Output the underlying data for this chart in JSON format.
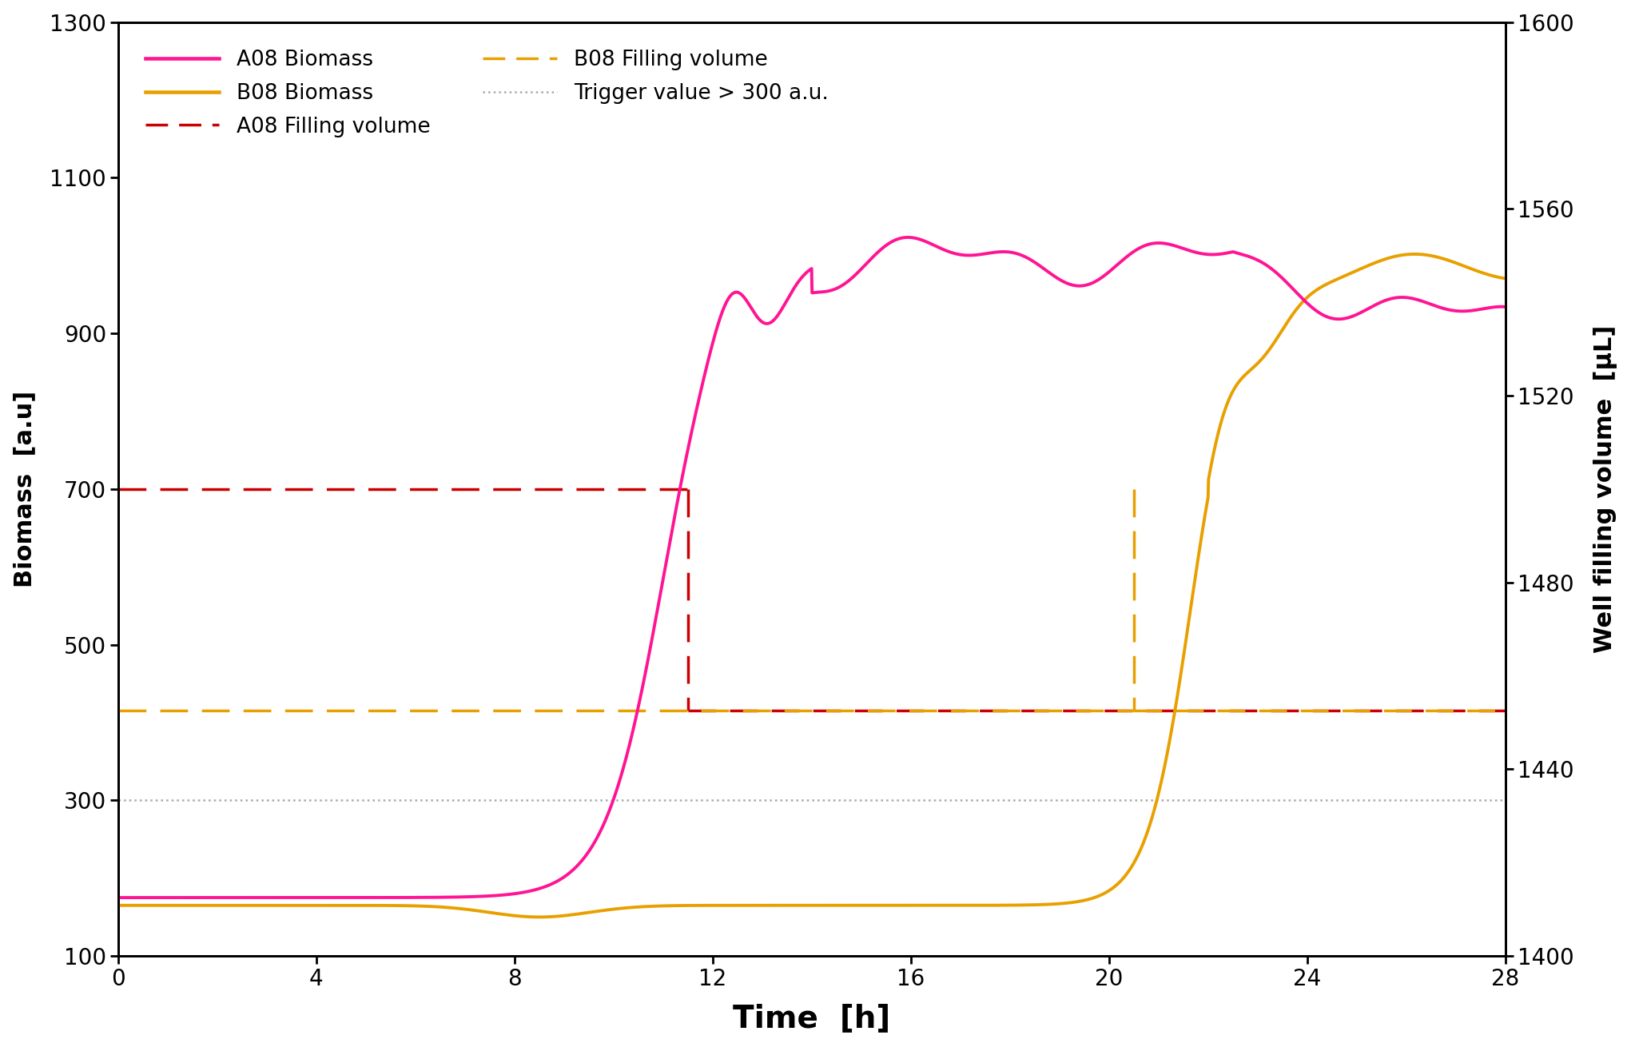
{
  "xlabel": "Time  [h]",
  "ylabel_left": "Biomass  [a.u]",
  "ylabel_right": "Well filling volume  [μL]",
  "xlim": [
    0,
    28
  ],
  "ylim_left": [
    100,
    1300
  ],
  "ylim_right": [
    1400,
    1600
  ],
  "yticks_left": [
    100,
    300,
    500,
    700,
    900,
    1100,
    1300
  ],
  "yticks_right": [
    1400,
    1440,
    1480,
    1520,
    1560,
    1600
  ],
  "xticks": [
    0,
    4,
    8,
    12,
    16,
    20,
    24,
    28
  ],
  "A08_color": "#FF1493",
  "B08_color": "#E8A000",
  "trigger_color": "#AAAAAA",
  "A08_fill_color": "#CC0000",
  "B08_fill_color": "#E8A000",
  "fontsize_ticks": 20,
  "fontsize_xlabel": 28,
  "fontsize_ylabel": 22,
  "fontsize_legend": 19,
  "lw_biomass": 2.8,
  "lw_filling": 2.5,
  "lw_trigger": 1.8,
  "A08_fill_high": 700,
  "A08_fill_low": 415,
  "A08_drop_t": 11.5,
  "B08_fill_high": 700,
  "B08_fill_low": 415,
  "B08_drop_t": 20.5
}
